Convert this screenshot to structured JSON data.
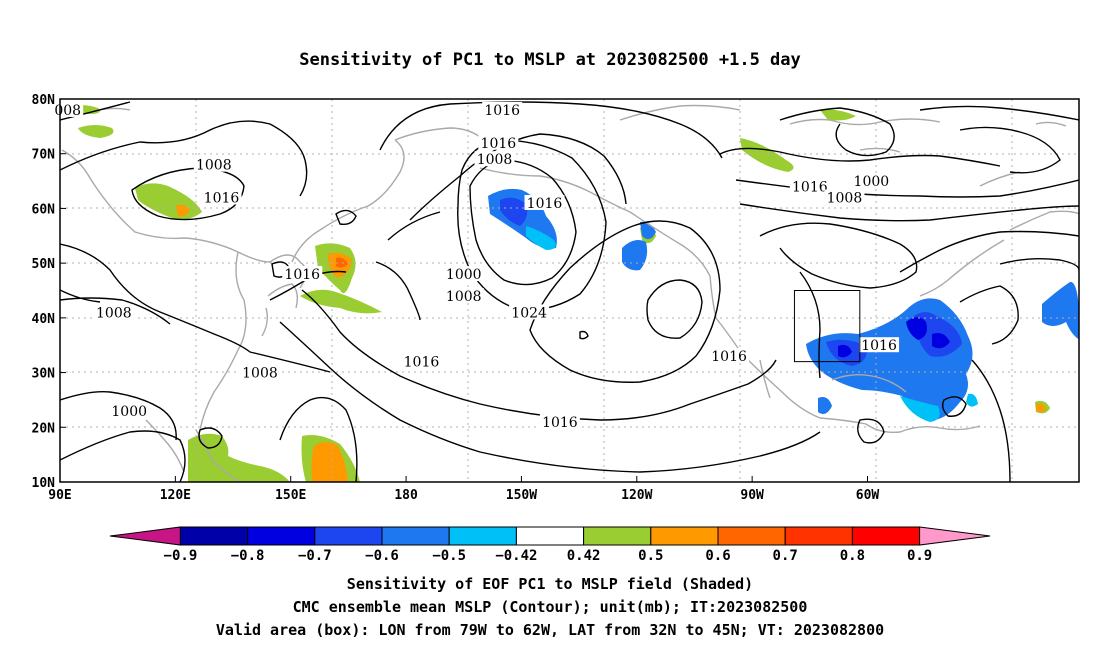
{
  "title": "Sensitivity of PC1 to MSLP at 2023082500 +1.5 day",
  "lat_labels": [
    "80N",
    "70N",
    "60N",
    "50N",
    "40N",
    "30N",
    "20N",
    "10N"
  ],
  "lon_labels": [
    "90E",
    "120E",
    "150E",
    "180",
    "150W",
    "120W",
    "90W",
    "60W"
  ],
  "contour_labels": [
    {
      "text": "008",
      "lon": 92,
      "lat": 78
    },
    {
      "text": "1008",
      "lon": 130,
      "lat": 68
    },
    {
      "text": "1016",
      "lon": 132,
      "lat": 62
    },
    {
      "text": "1016",
      "lon": -155,
      "lat": 78
    },
    {
      "text": "1016",
      "lon": -156,
      "lat": 72
    },
    {
      "text": "1008",
      "lon": -157,
      "lat": 69
    },
    {
      "text": "1016",
      "lon": -144,
      "lat": 61
    },
    {
      "text": "1000",
      "lon": -165,
      "lat": 48
    },
    {
      "text": "1008",
      "lon": -165,
      "lat": 44
    },
    {
      "text": "1016",
      "lon": 153,
      "lat": 48
    },
    {
      "text": "1008",
      "lon": 104,
      "lat": 41
    },
    {
      "text": "1008",
      "lon": 142,
      "lat": 30
    },
    {
      "text": "1000",
      "lon": 108,
      "lat": 23
    },
    {
      "text": "1024",
      "lon": -148,
      "lat": 41
    },
    {
      "text": "1016",
      "lon": -176,
      "lat": 32
    },
    {
      "text": "1016",
      "lon": -140,
      "lat": 21
    },
    {
      "text": "1016",
      "lon": -75,
      "lat": 64
    },
    {
      "text": "1008",
      "lon": -66,
      "lat": 62
    },
    {
      "text": "1000",
      "lon": -59,
      "lat": 65
    },
    {
      "text": "1016",
      "lon": -96,
      "lat": 33
    },
    {
      "text": "1016",
      "lon": -57,
      "lat": 35
    }
  ],
  "legend": {
    "labels": [
      "−0.9",
      "−0.8",
      "−0.7",
      "−0.6",
      "−0.5",
      "−0.42",
      "0.42",
      "0.5",
      "0.6",
      "0.7",
      "0.8",
      "0.9"
    ],
    "colors": [
      "#c71585",
      "#0000a8",
      "#0000e0",
      "#1e46f0",
      "#1e78f0",
      "#00c0f8",
      "#ffffff",
      "#9acd32",
      "#ff9900",
      "#ff6600",
      "#ff3300",
      "#ff0000",
      "#ff99cc"
    ]
  },
  "valid_box": {
    "lon_min": -79,
    "lon_max": -62,
    "lat_min": 32,
    "lat_max": 45
  },
  "footer": {
    "line1": "Sensitivity of EOF PC1 to MSLP field (Shaded)",
    "line2": "CMC ensemble mean MSLP (Contour); unit(mb); IT:2023082500",
    "line3": "Valid area (box): LON from 79W to 62W, LAT from 32N to 45N; VT: 2023082800"
  }
}
